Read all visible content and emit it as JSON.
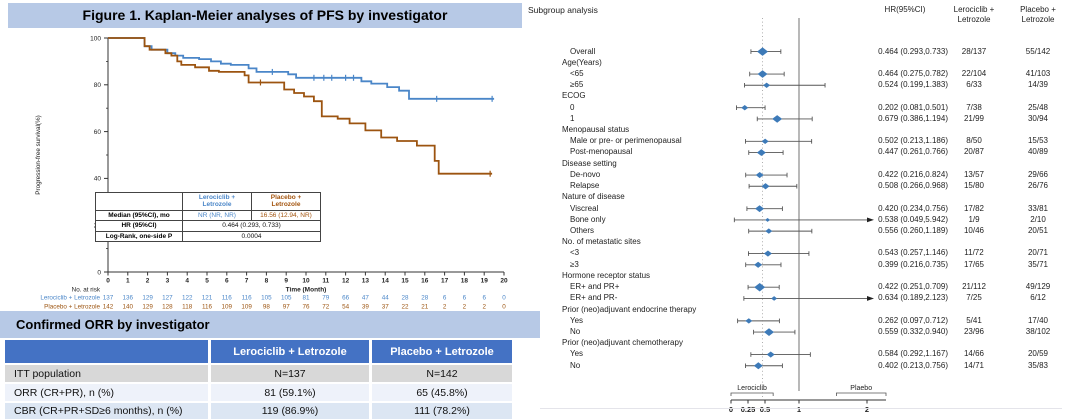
{
  "colors": {
    "banner_blue": "#b7c9e6",
    "table_header_blue": "#4472c4",
    "row_gray": "#d8d8d8",
    "row_light": "#eef2fa",
    "row_blue": "#dce6f3",
    "km_blue": "#4a86c8",
    "km_orange": "#9c5410",
    "forest_marker": "#3d7ab8",
    "ci_line": "#555555"
  },
  "chart_data": [
    {
      "type": "line",
      "subtype": "kaplan-meier-step",
      "title": "Figure 1. Kaplan-Meier analyses of PFS by investigator",
      "xlabel": "Time (Month)",
      "ylabel": "Progression-free survival(%)",
      "xlim": [
        0,
        20
      ],
      "ylim": [
        0,
        100
      ],
      "xticks": [
        0,
        1,
        2,
        3,
        4,
        5,
        6,
        7,
        8,
        9,
        10,
        11,
        12,
        13,
        14,
        15,
        16,
        17,
        18,
        19,
        20
      ],
      "yticks": [
        0,
        20,
        40,
        60,
        80,
        100
      ],
      "series": [
        {
          "name": "Lerociclib + Letrozole",
          "color": "#4a86c8",
          "steps": [
            [
              0,
              100
            ],
            [
              1.85,
              100
            ],
            [
              1.85,
              96.5
            ],
            [
              2.2,
              96.5
            ],
            [
              2.2,
              95
            ],
            [
              3.0,
              95
            ],
            [
              3.0,
              93.5
            ],
            [
              3.4,
              93.5
            ],
            [
              3.4,
              92.5
            ],
            [
              3.8,
              92.5
            ],
            [
              3.8,
              91.5
            ],
            [
              4.6,
              91.5
            ],
            [
              4.6,
              91
            ],
            [
              5.2,
              91
            ],
            [
              5.2,
              90
            ],
            [
              5.7,
              90
            ],
            [
              5.7,
              89
            ],
            [
              6.2,
              89
            ],
            [
              6.2,
              88.5
            ],
            [
              7.1,
              88.5
            ],
            [
              7.1,
              87
            ],
            [
              7.5,
              87
            ],
            [
              7.5,
              85.5
            ],
            [
              9.1,
              85.5
            ],
            [
              9.1,
              84.5
            ],
            [
              9.5,
              84.5
            ],
            [
              9.5,
              83
            ],
            [
              12.8,
              83
            ],
            [
              12.8,
              81.5
            ],
            [
              13.3,
              81.5
            ],
            [
              13.3,
              80.5
            ],
            [
              14.1,
              80.5
            ],
            [
              14.1,
              79
            ],
            [
              14.7,
              79
            ],
            [
              14.7,
              77.5
            ],
            [
              15.2,
              77.5
            ],
            [
              15.2,
              74
            ],
            [
              19.5,
              74
            ]
          ],
          "censor_months": [
            8.3,
            10.4,
            10.9,
            11.3,
            12.0,
            12.4,
            16.6,
            19.4
          ]
        },
        {
          "name": "Placebo + Letrozole",
          "color": "#9c5410",
          "steps": [
            [
              0,
              100
            ],
            [
              1.85,
              100
            ],
            [
              1.85,
              96.5
            ],
            [
              2.1,
              96.5
            ],
            [
              2.1,
              95
            ],
            [
              2.9,
              95
            ],
            [
              2.9,
              93.5
            ],
            [
              3.2,
              93.5
            ],
            [
              3.2,
              92.5
            ],
            [
              3.5,
              92.5
            ],
            [
              3.5,
              90
            ],
            [
              3.7,
              90
            ],
            [
              3.7,
              88.5
            ],
            [
              4.4,
              88.5
            ],
            [
              4.4,
              87.5
            ],
            [
              5.1,
              87.5
            ],
            [
              5.1,
              86
            ],
            [
              5.6,
              86
            ],
            [
              5.6,
              85.5
            ],
            [
              6.9,
              85.5
            ],
            [
              6.9,
              84
            ],
            [
              7.1,
              84
            ],
            [
              7.1,
              81
            ],
            [
              8.9,
              81
            ],
            [
              8.9,
              78
            ],
            [
              9.4,
              78
            ],
            [
              9.4,
              76.5
            ],
            [
              9.9,
              76.5
            ],
            [
              9.9,
              75
            ],
            [
              10.4,
              75
            ],
            [
              10.4,
              73
            ],
            [
              10.8,
              73
            ],
            [
              10.8,
              66.5
            ],
            [
              11.6,
              66.5
            ],
            [
              11.6,
              65.5
            ],
            [
              12.2,
              65.5
            ],
            [
              12.2,
              63.5
            ],
            [
              13.0,
              63.5
            ],
            [
              13.0,
              60.5
            ],
            [
              13.8,
              60.5
            ],
            [
              13.8,
              57.5
            ],
            [
              14.6,
              57.5
            ],
            [
              14.6,
              56
            ],
            [
              15.6,
              56
            ],
            [
              15.6,
              54
            ],
            [
              16.5,
              54
            ],
            [
              16.5,
              47.5
            ],
            [
              16.7,
              47.5
            ],
            [
              16.7,
              42
            ],
            [
              19.4,
              42
            ]
          ],
          "censor_months": [
            7.7,
            19.3
          ]
        }
      ],
      "at_risk": {
        "label": "No. at risk",
        "months": [
          0,
          1,
          2,
          3,
          4,
          5,
          6,
          7,
          8,
          9,
          10,
          11,
          12,
          13,
          14,
          15,
          16,
          17,
          18,
          19,
          20
        ],
        "rows": [
          {
            "name": "Lerociclib + Letrozole",
            "color": "#4a86c8",
            "values": [
              137,
              136,
              129,
              127,
              122,
              121,
              116,
              116,
              105,
              105,
              81,
              79,
              66,
              47,
              44,
              28,
              28,
              6,
              6,
              6,
              0
            ]
          },
          {
            "name": "Placebo + Letrozole",
            "color": "#9c5410",
            "values": [
              142,
              140,
              129,
              128,
              118,
              116,
              109,
              109,
              98,
              97,
              76,
              72,
              54,
              39,
              37,
              22,
              21,
              2,
              2,
              2,
              0
            ]
          }
        ]
      },
      "inset_table": {
        "col_headers": [
          "Lerociclib +\nLetrozole",
          "Placebo +\nLetrozole"
        ],
        "col_header_colors": [
          "#4a86c8",
          "#a3540e"
        ],
        "rows": [
          {
            "label": "Median (95%CI), mo",
            "values": [
              "NR (NR, NR)",
              "16.56 (12.94, NR)"
            ],
            "value_colors": [
              "#4a86c8",
              "#a3540e"
            ],
            "span": false
          },
          {
            "label": "HR (95%CI)",
            "values": [
              "0.464 (0.293,  0.733)"
            ],
            "span": true
          },
          {
            "label": "Log-Rank, one-side P",
            "values": [
              "0.0004"
            ],
            "span": true
          }
        ]
      }
    },
    {
      "type": "scatter",
      "subtype": "forest-plot",
      "title": "Subgroup analysis",
      "columns": [
        "HR(95%CI)",
        "Lerociclib +\nLetrozole",
        "Placebo +\nLetrozole"
      ],
      "xticks": [
        "0",
        "0.25",
        "0.5",
        "1",
        "2"
      ],
      "xtick_values": [
        0,
        0.25,
        0.5,
        1,
        2
      ],
      "xlim": [
        0,
        2.25
      ],
      "ref_line": 1,
      "dashed_line": 0.464,
      "axis_group_labels": {
        "left": "Lerociclib",
        "right": "Plaebo"
      },
      "rows": [
        {
          "label": "Overall",
          "indent": 1,
          "hr": 0.464,
          "lo": 0.293,
          "hi": 0.733,
          "hr_text": "0.464 (0.293,0.733)",
          "n1": "28/137",
          "n2": "55/142",
          "sz": 11
        },
        {
          "label": "Age(Years)",
          "indent": 0
        },
        {
          "label": "<65",
          "indent": 1,
          "hr": 0.464,
          "lo": 0.275,
          "hi": 0.782,
          "hr_text": "0.464 (0.275,0.782)",
          "n1": "22/104",
          "n2": "41/103",
          "sz": 10
        },
        {
          "label": "≥65",
          "indent": 1,
          "hr": 0.524,
          "lo": 0.199,
          "hi": 1.383,
          "hr_text": "0.524 (0.199,1.383)",
          "n1": "6/33",
          "n2": "14/39",
          "sz": 7
        },
        {
          "label": "ECOG",
          "indent": 0
        },
        {
          "label": "0",
          "indent": 1,
          "hr": 0.202,
          "lo": 0.081,
          "hi": 0.501,
          "hr_text": "0.202 (0.081,0.501)",
          "n1": "7/38",
          "n2": "25/48",
          "sz": 7
        },
        {
          "label": "1",
          "indent": 1,
          "hr": 0.679,
          "lo": 0.386,
          "hi": 1.194,
          "hr_text": "0.679 (0.386,1.194)",
          "n1": "21/99",
          "n2": "30/94",
          "sz": 10
        },
        {
          "label": "Menopausal status",
          "indent": 0
        },
        {
          "label": "Male or pre- or perimenopausal",
          "indent": 1,
          "hr": 0.502,
          "lo": 0.213,
          "hi": 1.186,
          "hr_text": "0.502 (0.213,1.186)",
          "n1": "8/50",
          "n2": "15/53",
          "sz": 7
        },
        {
          "label": "Post-menopausal",
          "indent": 1,
          "hr": 0.447,
          "lo": 0.261,
          "hi": 0.766,
          "hr_text": "0.447 (0.261,0.766)",
          "n1": "20/87",
          "n2": "40/89",
          "sz": 9
        },
        {
          "label": "Disease setting",
          "indent": 0
        },
        {
          "label": "De-novo",
          "indent": 1,
          "hr": 0.422,
          "lo": 0.216,
          "hi": 0.824,
          "hr_text": "0.422 (0.216,0.824)",
          "n1": "13/57",
          "n2": "29/66",
          "sz": 8
        },
        {
          "label": "Relapse",
          "indent": 1,
          "hr": 0.508,
          "lo": 0.266,
          "hi": 0.968,
          "hr_text": "0.508 (0.266,0.968)",
          "n1": "15/80",
          "n2": "26/76",
          "sz": 8
        },
        {
          "label": "Nature of disease",
          "indent": 0
        },
        {
          "label": "Viscreal",
          "indent": 1,
          "hr": 0.42,
          "lo": 0.234,
          "hi": 0.756,
          "hr_text": "0.420 (0.234,0.756)",
          "n1": "17/82",
          "n2": "33/81",
          "sz": 9
        },
        {
          "label": "Bone only",
          "indent": 1,
          "hr": 0.538,
          "lo": 0.049,
          "hi": 5.942,
          "hr_text": "0.538 (0.049,5.942)",
          "n1": "1/9",
          "n2": "2/10",
          "sz": 5
        },
        {
          "label": "Others",
          "indent": 1,
          "hr": 0.556,
          "lo": 0.26,
          "hi": 1.189,
          "hr_text": "0.556 (0.260,1.189)",
          "n1": "10/46",
          "n2": "20/51",
          "sz": 7
        },
        {
          "label": "No. of metastatic sites",
          "indent": 0
        },
        {
          "label": "<3",
          "indent": 1,
          "hr": 0.543,
          "lo": 0.257,
          "hi": 1.146,
          "hr_text": "0.543 (0.257,1.146)",
          "n1": "11/72",
          "n2": "20/71",
          "sz": 8
        },
        {
          "label": "≥3",
          "indent": 1,
          "hr": 0.399,
          "lo": 0.216,
          "hi": 0.735,
          "hr_text": "0.399 (0.216,0.735)",
          "n1": "17/65",
          "n2": "35/71",
          "sz": 8
        },
        {
          "label": "Hormone receptor status",
          "indent": 0
        },
        {
          "label": "ER+ and PR+",
          "indent": 1,
          "hr": 0.422,
          "lo": 0.251,
          "hi": 0.709,
          "hr_text": "0.422 (0.251,0.709)",
          "n1": "21/112",
          "n2": "49/129",
          "sz": 11
        },
        {
          "label": "ER+ and PR-",
          "indent": 1,
          "hr": 0.634,
          "lo": 0.189,
          "hi": 2.123,
          "hr_text": "0.634 (0.189,2.123)",
          "n1": "7/25",
          "n2": "6/12",
          "sz": 6
        },
        {
          "label": "Prior (neo)adjuvant endocrine therapy",
          "indent": 0
        },
        {
          "label": "Yes",
          "indent": 1,
          "hr": 0.262,
          "lo": 0.097,
          "hi": 0.712,
          "hr_text": "0.262 (0.097,0.712)",
          "n1": "5/41",
          "n2": "17/40",
          "sz": 7
        },
        {
          "label": "No",
          "indent": 1,
          "hr": 0.559,
          "lo": 0.332,
          "hi": 0.94,
          "hr_text": "0.559 (0.332,0.940)",
          "n1": "23/96",
          "n2": "38/102",
          "sz": 10
        },
        {
          "label": "Prior (neo)adjuvant chemotherapy",
          "indent": 0
        },
        {
          "label": "Yes",
          "indent": 1,
          "hr": 0.584,
          "lo": 0.292,
          "hi": 1.167,
          "hr_text": "0.584 (0.292,1.167)",
          "n1": "14/66",
          "n2": "20/59",
          "sz": 8
        },
        {
          "label": "No",
          "indent": 1,
          "hr": 0.402,
          "lo": 0.213,
          "hi": 0.756,
          "hr_text": "0.402 (0.213,0.756)",
          "n1": "14/71",
          "n2": "35/83",
          "sz": 9
        }
      ]
    },
    {
      "type": "table",
      "title": "Confirmed ORR by investigator",
      "columns": [
        "",
        "Lerociclib + Letrozole",
        "Placebo + Letrozole"
      ],
      "rows": [
        {
          "label": "ITT population",
          "v1": "N=137",
          "v2": "N=142",
          "bg": "#d8d8d8"
        },
        {
          "label": "ORR (CR+PR), n (%)",
          "v1": "81 (59.1%)",
          "v2": "65 (45.8%)",
          "bg": "#eef2fa"
        },
        {
          "label": "CBR (CR+PR+SD≥6 months), n (%)",
          "v1": "119 (86.9%)",
          "v2": "111 (78.2%)",
          "bg": "#dce6f3"
        }
      ]
    }
  ]
}
